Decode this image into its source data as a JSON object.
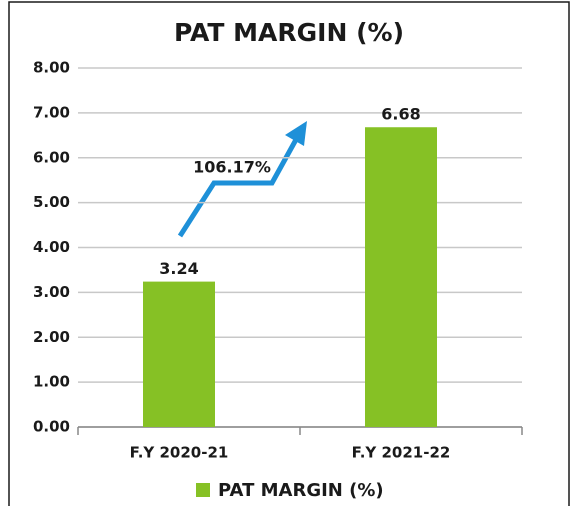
{
  "chart_data": {
    "type": "bar",
    "title": "PAT MARGIN (%)",
    "categories": [
      "F.Y 2020-21",
      "F.Y 2021-22"
    ],
    "series": [
      {
        "name": "PAT MARGIN (%)",
        "color": "#86c125",
        "values": [
          3.24,
          6.68
        ]
      }
    ],
    "ylim": [
      0,
      8
    ],
    "yticks": [
      {
        "value": 0,
        "label": "0.00"
      },
      {
        "value": 1,
        "label": "1.00"
      },
      {
        "value": 2,
        "label": "2.00"
      },
      {
        "value": 3,
        "label": "3.00"
      },
      {
        "value": 4,
        "label": "4.00"
      },
      {
        "value": 5,
        "label": "5.00"
      },
      {
        "value": 6,
        "label": "6.00"
      },
      {
        "value": 7,
        "label": "7.00"
      },
      {
        "value": 8,
        "label": "8.00"
      }
    ],
    "grid": true,
    "annotation": "106.17%",
    "legend": "bottom"
  }
}
